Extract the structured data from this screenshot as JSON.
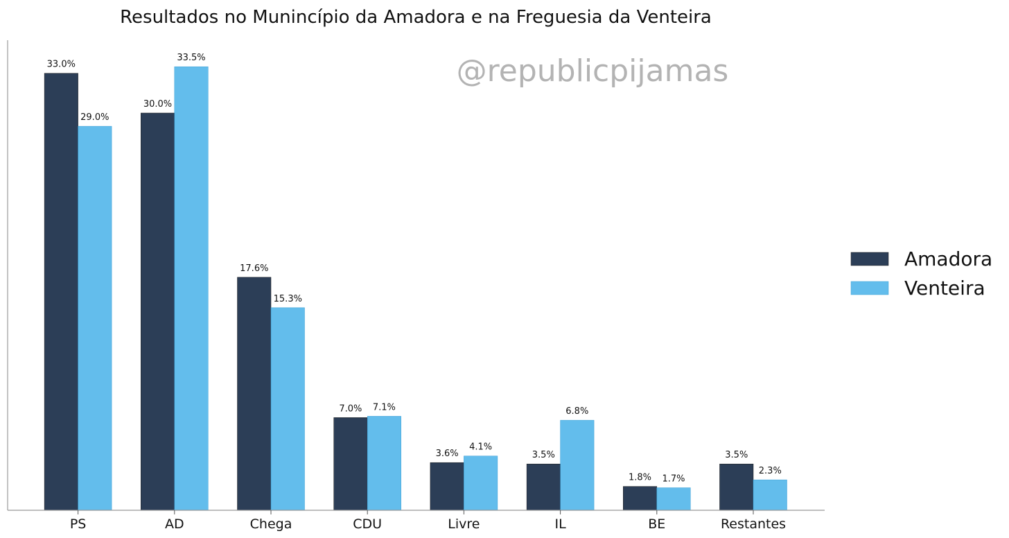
{
  "chart_data": {
    "type": "bar",
    "title": "Resultados no Munincípio da Amadora e na Freguesia da Venteira",
    "watermark": "@republicpijamas",
    "categories": [
      "PS",
      "AD",
      "Chega",
      "CDU",
      "Livre",
      "IL",
      "BE",
      "Restantes"
    ],
    "series": [
      {
        "name": "Amadora",
        "color": "#2c3e57",
        "values": [
          33.0,
          30.0,
          17.6,
          7.0,
          3.6,
          3.5,
          1.8,
          3.5
        ],
        "labels": [
          "33.0%",
          "30.0%",
          "17.6%",
          "7.0%",
          "3.6%",
          "3.5%",
          "1.8%",
          "3.5%"
        ]
      },
      {
        "name": "Venteira",
        "color": "#63bdec",
        "values": [
          29.0,
          33.5,
          15.3,
          7.1,
          4.1,
          6.8,
          1.7,
          2.3
        ],
        "labels": [
          "29.0%",
          "33.5%",
          "15.3%",
          "7.1%",
          "4.1%",
          "6.8%",
          "1.7%",
          "2.3%"
        ]
      }
    ],
    "xlabel": "",
    "ylabel": "",
    "ylim": [
      0,
      35.5
    ],
    "legend_position": "right",
    "grid": false
  }
}
